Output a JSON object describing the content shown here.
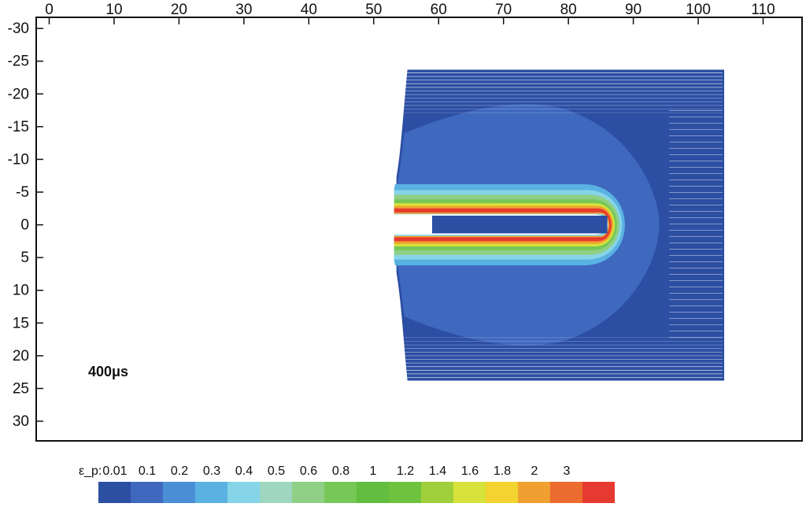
{
  "chart_data": {
    "type": "heatmap",
    "title": "",
    "xlabel": "",
    "ylabel": "",
    "grid": false,
    "xlim": [
      -2,
      116
    ],
    "ylim": [
      -31.7,
      33
    ],
    "x_ticks": [
      0,
      10,
      20,
      30,
      40,
      50,
      60,
      70,
      80,
      90,
      100,
      110
    ],
    "y_ticks": [
      -30,
      -25,
      -20,
      -15,
      -10,
      -5,
      0,
      5,
      10,
      15,
      20,
      25,
      30
    ],
    "annotation": "400μs",
    "colorbar": {
      "label": "ε_p:",
      "levels": [
        "0.01",
        "0.1",
        "0.2",
        "0.3",
        "0.4",
        "0.5",
        "0.6",
        "0.8",
        "1",
        "1.2",
        "1.4",
        "1.6",
        "1.8",
        "2",
        "3"
      ],
      "colors": [
        "#2c4ea3",
        "#3f68bf",
        "#4a8ed6",
        "#5ab2e2",
        "#86d4e8",
        "#9ed6c0",
        "#8fcf86",
        "#76c758",
        "#63bd3f",
        "#6fc23d",
        "#9fcf3a",
        "#d7e23a",
        "#f2d330",
        "#f0a030",
        "#ec6b2f",
        "#e63a30"
      ]
    },
    "field": {
      "target_block_x": [
        53.5,
        104
      ],
      "target_block_y": [
        -23.7,
        23.8
      ],
      "penetrator_rod_x": [
        59,
        86
      ],
      "penetrator_rod_y": [
        -1.4,
        1.3
      ],
      "crater_tip_x": 86,
      "peak_strain_band": "3"
    }
  }
}
